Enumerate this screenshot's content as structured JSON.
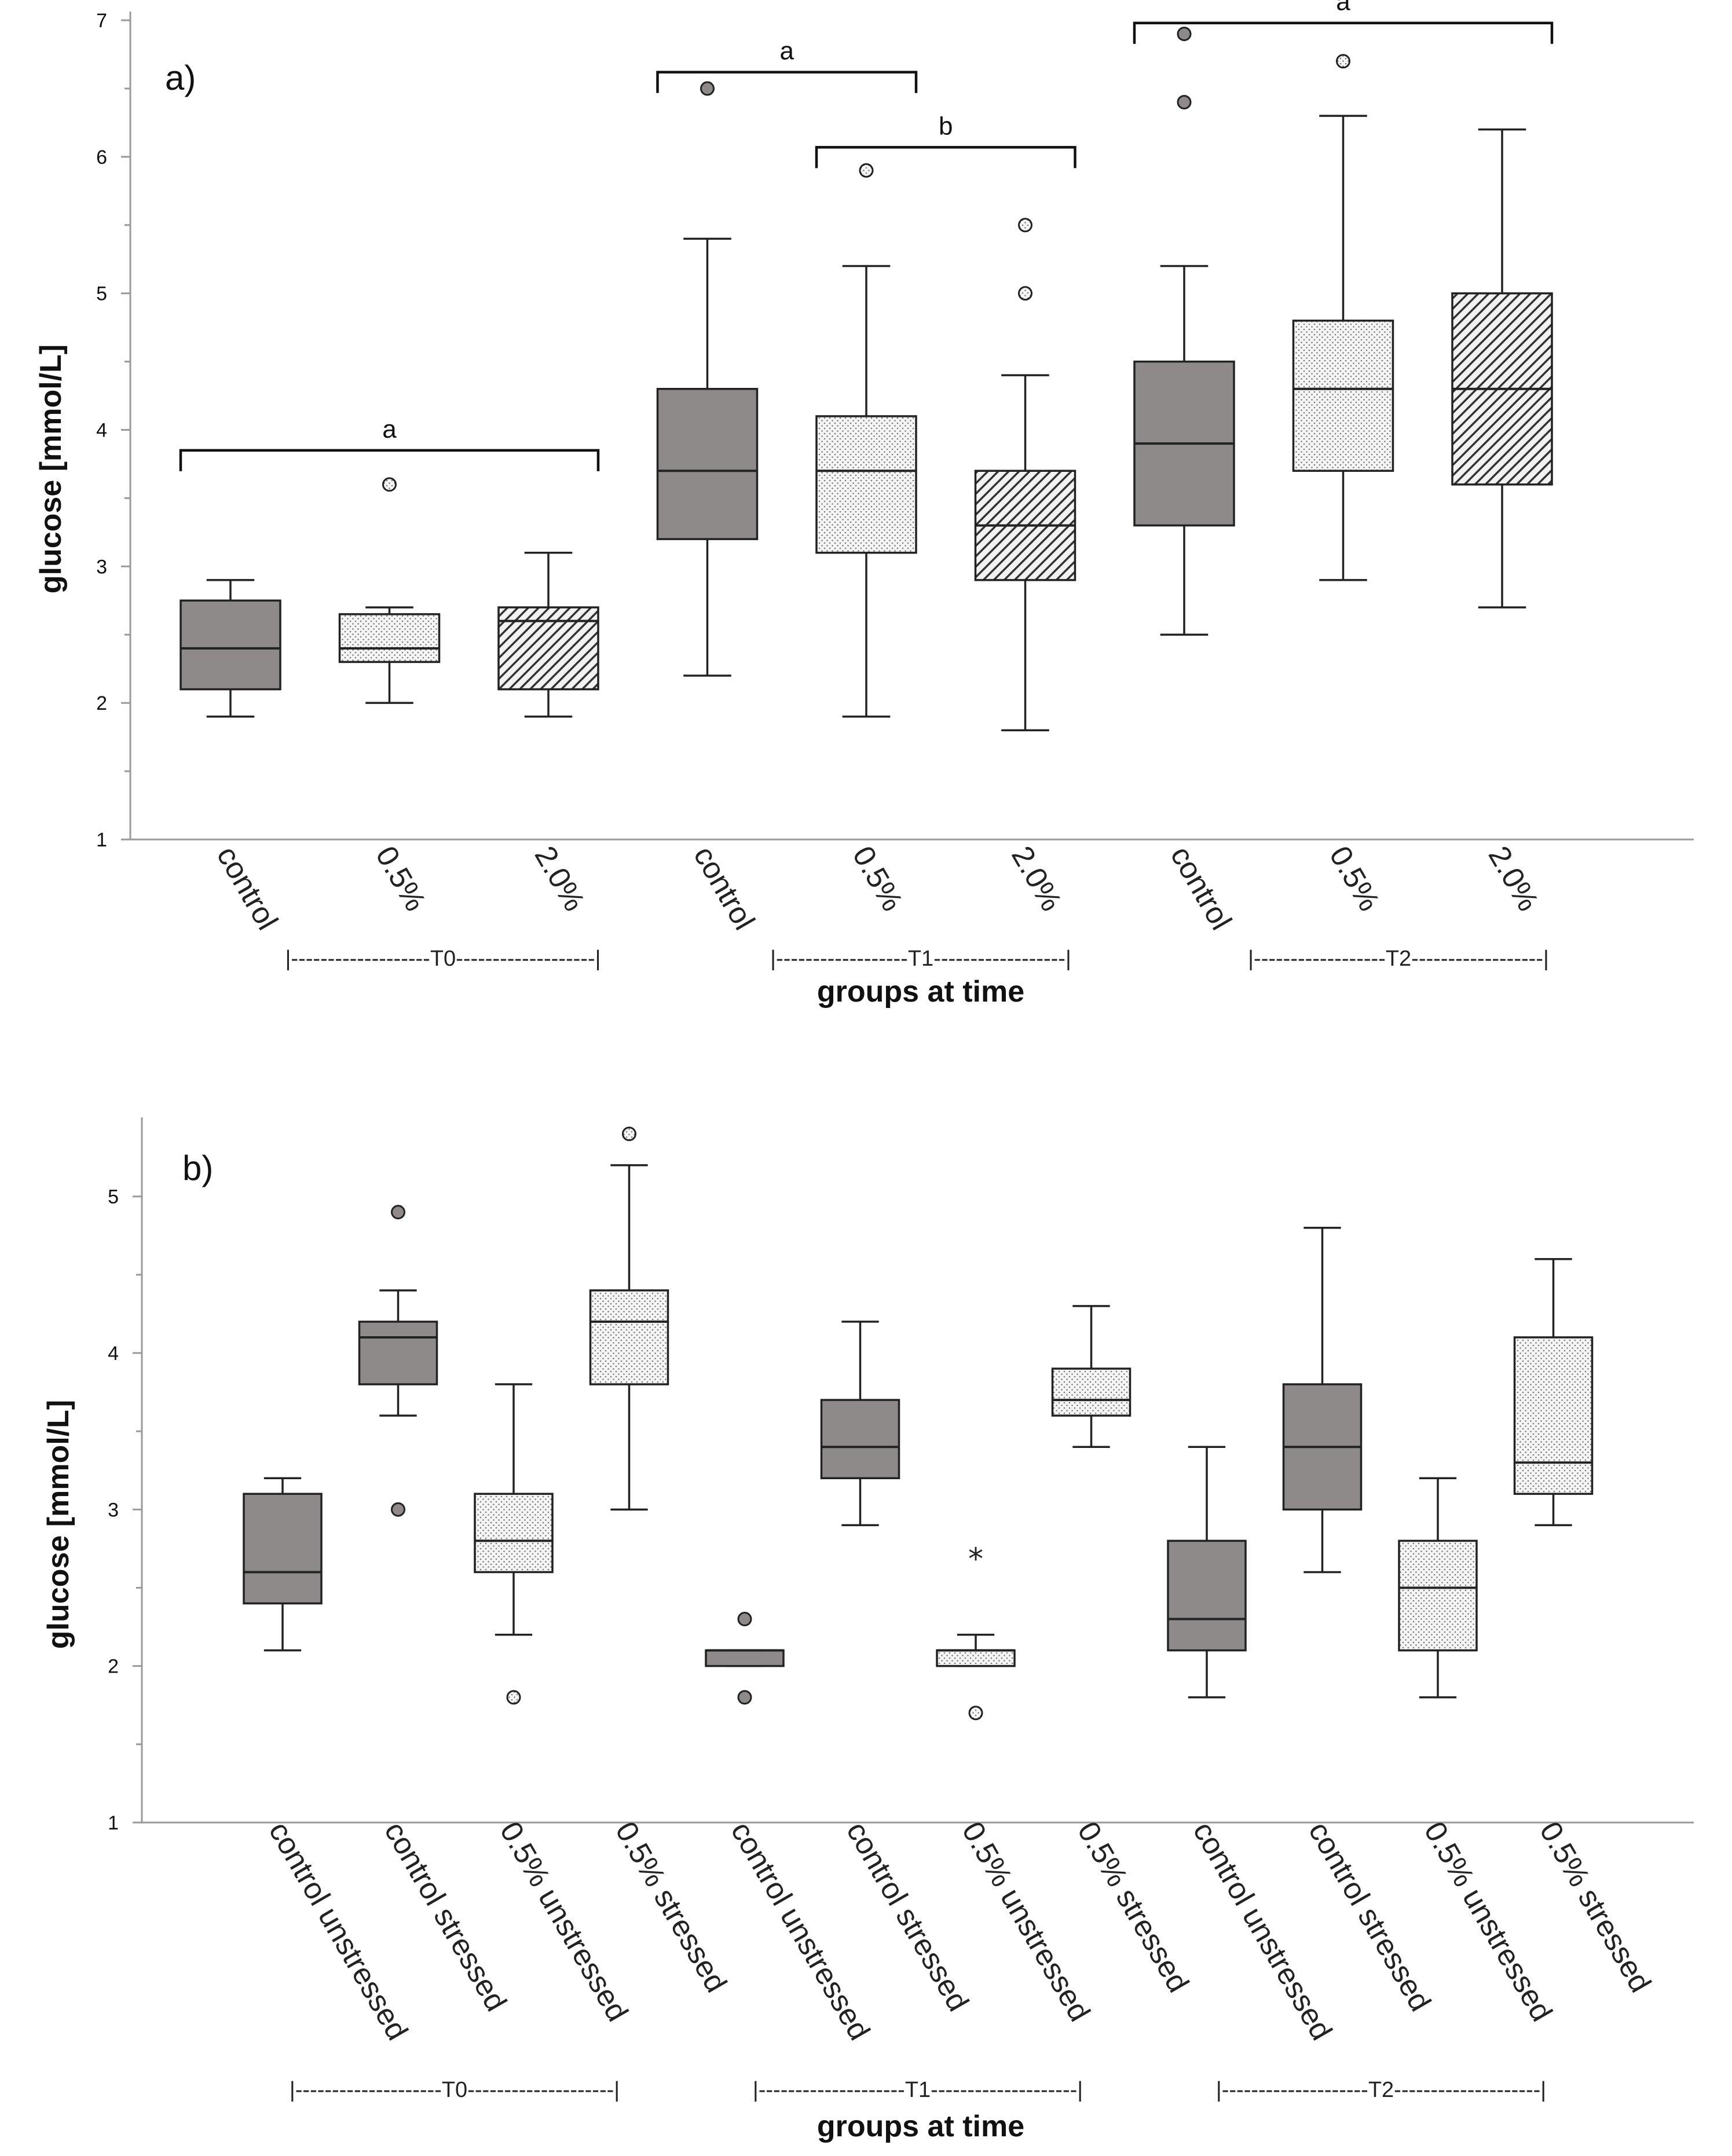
{
  "chart_data": [
    {
      "type": "boxplot",
      "panel_label": "a)",
      "ylabel": "glucose [mmol/L]",
      "xlabel": "groups at time",
      "ylim": [
        1,
        7
      ],
      "yticks": [
        "1",
        "2",
        "3",
        "4",
        "5",
        "6",
        "7"
      ],
      "categories": [
        "control",
        "0.5%",
        "2.0%",
        "control",
        "0.5%",
        "2.0%",
        "control",
        "0.5%",
        "2.0%"
      ],
      "time_groups": [
        {
          "label": "T0",
          "text": "|-------------------T0-------------------|"
        },
        {
          "label": "T1",
          "text": "|------------------T1------------------|"
        },
        {
          "label": "T2",
          "text": "|------------------T2------------------|"
        }
      ],
      "boxes": [
        {
          "category": "control",
          "time": "T0",
          "fill": "solid",
          "whislo": 1.9,
          "q1": 2.1,
          "med": 2.4,
          "q3": 2.75,
          "whishi": 2.9,
          "outliers": []
        },
        {
          "category": "0.5%",
          "time": "T0",
          "fill": "dots",
          "whislo": 2.0,
          "q1": 2.3,
          "med": 2.4,
          "q3": 2.65,
          "whishi": 2.7,
          "outliers": [
            3.6
          ]
        },
        {
          "category": "2.0%",
          "time": "T0",
          "fill": "hatch",
          "whislo": 1.9,
          "q1": 2.1,
          "med": 2.6,
          "q3": 2.7,
          "whishi": 3.1,
          "outliers": []
        },
        {
          "category": "control",
          "time": "T1",
          "fill": "solid",
          "whislo": 2.2,
          "q1": 3.2,
          "med": 3.7,
          "q3": 4.3,
          "whishi": 5.4,
          "outliers": [
            6.5
          ]
        },
        {
          "category": "0.5%",
          "time": "T1",
          "fill": "dots",
          "whislo": 1.9,
          "q1": 3.1,
          "med": 3.7,
          "q3": 4.1,
          "whishi": 5.2,
          "outliers": [
            5.9
          ]
        },
        {
          "category": "2.0%",
          "time": "T1",
          "fill": "hatch",
          "whislo": 1.8,
          "q1": 2.9,
          "med": 3.3,
          "q3": 3.7,
          "whishi": 4.4,
          "outliers": [
            5.0,
            5.5
          ]
        },
        {
          "category": "control",
          "time": "T2",
          "fill": "solid",
          "whislo": 2.5,
          "q1": 3.3,
          "med": 3.9,
          "q3": 4.5,
          "whishi": 5.2,
          "outliers": [
            6.4,
            6.9
          ]
        },
        {
          "category": "0.5%",
          "time": "T2",
          "fill": "dots",
          "whislo": 2.9,
          "q1": 3.7,
          "med": 4.3,
          "q3": 4.8,
          "whishi": 6.3,
          "outliers": [
            6.7
          ]
        },
        {
          "category": "2.0%",
          "time": "T2",
          "fill": "hatch",
          "whislo": 2.7,
          "q1": 3.6,
          "med": 4.3,
          "q3": 5.0,
          "whishi": 6.2,
          "outliers": []
        }
      ],
      "significance": [
        {
          "from": 0,
          "to": 2,
          "y": 3.85,
          "label": "a"
        },
        {
          "from": 3,
          "to": 4,
          "y": 6.62,
          "label": "a"
        },
        {
          "from": 4,
          "to": 5,
          "y": 6.07,
          "label": "b"
        },
        {
          "from": 6,
          "to": 8,
          "y": 6.98,
          "label": "a"
        }
      ]
    },
    {
      "type": "boxplot",
      "panel_label": "b)",
      "ylabel": "glucose [mmol/L]",
      "xlabel": "groups at time",
      "ylim": [
        1,
        5.45
      ],
      "yticks": [
        "1",
        "2",
        "3",
        "4",
        "5"
      ],
      "categories": [
        "control unstressed",
        "control stressed",
        "0.5% unstressed",
        "0.5% stressed",
        "control unstressed",
        "control stressed",
        "0.5% unstressed",
        "0.5% stressed",
        "control unstressed",
        "control stressed",
        "0.5% unstressed",
        "0.5% stressed"
      ],
      "time_groups": [
        {
          "label": "T0",
          "text": "|--------------------T0--------------------|"
        },
        {
          "label": "T1",
          "text": "|--------------------T1--------------------|"
        },
        {
          "label": "T2",
          "text": "|--------------------T2--------------------|"
        }
      ],
      "boxes": [
        {
          "category": "control unstressed",
          "time": "T0",
          "fill": "solid",
          "whislo": 2.1,
          "q1": 2.4,
          "med": 2.6,
          "q3": 3.1,
          "whishi": 3.2,
          "outliers": []
        },
        {
          "category": "control stressed",
          "time": "T0",
          "fill": "solid",
          "whislo": 3.6,
          "q1": 3.8,
          "med": 4.1,
          "q3": 4.2,
          "whishi": 4.4,
          "outliers": [
            3.0,
            4.9
          ]
        },
        {
          "category": "0.5% unstressed",
          "time": "T0",
          "fill": "dots",
          "whislo": 2.2,
          "q1": 2.6,
          "med": 2.8,
          "q3": 3.1,
          "whishi": 3.8,
          "outliers": [
            1.8
          ]
        },
        {
          "category": "0.5% stressed",
          "time": "T0",
          "fill": "dots",
          "whislo": 3.0,
          "q1": 3.8,
          "med": 4.2,
          "q3": 4.4,
          "whishi": 5.2,
          "outliers": [
            5.4
          ]
        },
        {
          "category": "control unstressed",
          "time": "T1",
          "fill": "solid",
          "whislo": 2.0,
          "q1": 2.0,
          "med": 2.1,
          "q3": 2.1,
          "whishi": 2.1,
          "outliers": [
            1.8,
            2.3
          ]
        },
        {
          "category": "control stressed",
          "time": "T1",
          "fill": "solid",
          "whislo": 2.9,
          "q1": 3.2,
          "med": 3.4,
          "q3": 3.7,
          "whishi": 4.2,
          "outliers": []
        },
        {
          "category": "0.5% unstressed",
          "time": "T1",
          "fill": "dots",
          "whislo": 2.0,
          "q1": 2.0,
          "med": 2.1,
          "q3": 2.1,
          "whishi": 2.2,
          "outliers": [
            1.7
          ],
          "extremes": [
            2.7
          ]
        },
        {
          "category": "0.5% stressed",
          "time": "T1",
          "fill": "dots",
          "whislo": 3.4,
          "q1": 3.6,
          "med": 3.7,
          "q3": 3.9,
          "whishi": 4.3,
          "outliers": []
        },
        {
          "category": "control unstressed",
          "time": "T2",
          "fill": "solid",
          "whislo": 1.8,
          "q1": 2.1,
          "med": 2.3,
          "q3": 2.8,
          "whishi": 3.4,
          "outliers": []
        },
        {
          "category": "control stressed",
          "time": "T2",
          "fill": "solid",
          "whislo": 2.6,
          "q1": 3.0,
          "med": 3.4,
          "q3": 3.8,
          "whishi": 4.8,
          "outliers": []
        },
        {
          "category": "0.5% unstressed",
          "time": "T2",
          "fill": "dots",
          "whislo": 1.8,
          "q1": 2.1,
          "med": 2.5,
          "q3": 2.8,
          "whishi": 3.2,
          "outliers": []
        },
        {
          "category": "0.5% stressed",
          "time": "T2",
          "fill": "dots",
          "whislo": 2.9,
          "q1": 3.1,
          "med": 3.3,
          "q3": 4.1,
          "whishi": 4.6,
          "outliers": []
        }
      ],
      "significance": []
    }
  ],
  "colors": {
    "solid_fill": "#8f8a8a",
    "pattern_bg": "#f4f4f4",
    "line": "#222222",
    "axis": "#9a9a9a"
  }
}
